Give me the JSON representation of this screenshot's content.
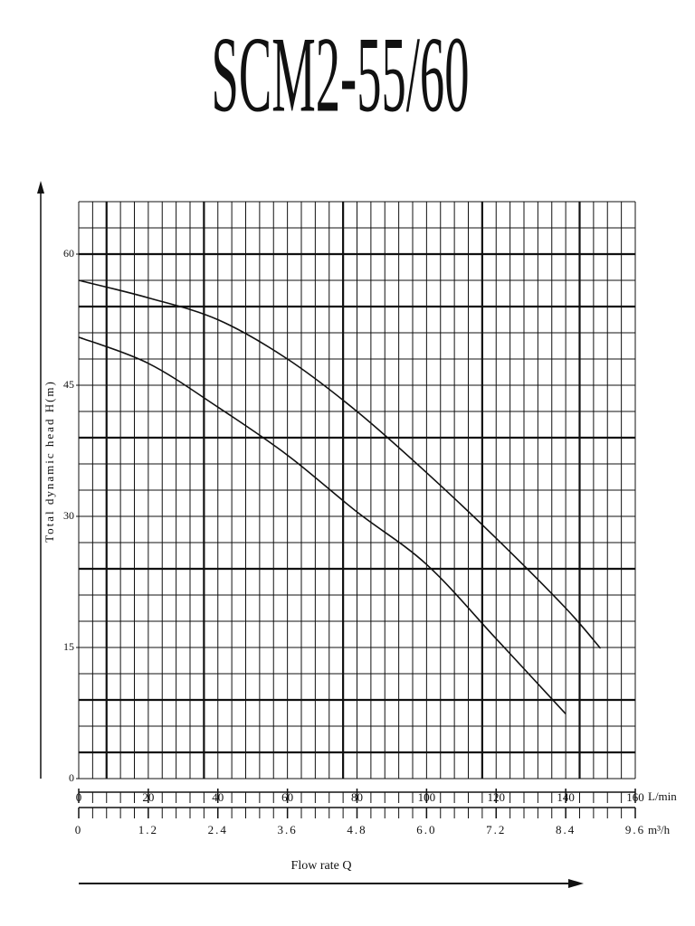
{
  "chart_data": {
    "type": "line",
    "title": "SCM2-55/60",
    "ylabel": "Total dynamic head H(m)",
    "xlabel": "Flow rate Q",
    "xunit": "L/min",
    "x2unit": "m³/h",
    "xlim": [
      0,
      160
    ],
    "xticks": [
      0,
      20,
      40,
      60,
      80,
      100,
      120,
      140,
      160
    ],
    "x2lim": [
      0,
      9.6
    ],
    "x2ticks": [
      0,
      1.2,
      2.4,
      3.6,
      4.8,
      {
        "value": 6,
        "label": "6.0"
      },
      7.2,
      8.4,
      9.6
    ],
    "ylim": [
      0,
      66
    ],
    "yticks": [
      0,
      15,
      30,
      45,
      60
    ],
    "grid": true,
    "series": [
      {
        "color": "#111111",
        "x": [
          0,
          20,
          40,
          60,
          80,
          100,
          120,
          140,
          150
        ],
        "values": [
          57,
          55,
          52.5,
          48,
          42,
          35,
          27.5,
          19.5,
          14.9
        ]
      },
      {
        "color": "#111111",
        "x": [
          0,
          20,
          40,
          60,
          80,
          100,
          120,
          140
        ],
        "values": [
          50.5,
          47.5,
          42.5,
          37,
          30.5,
          24.5,
          16,
          7.4
        ]
      }
    ]
  }
}
